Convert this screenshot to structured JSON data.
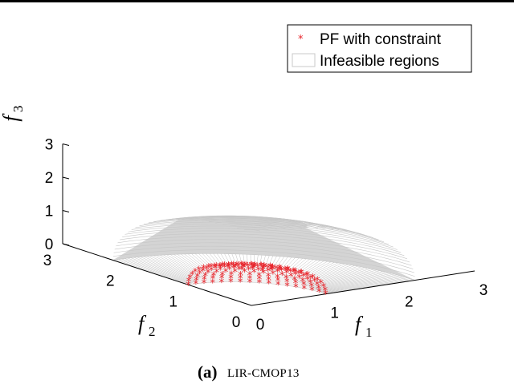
{
  "chart_data": {
    "type": "scatter",
    "projection": "3d",
    "caption": {
      "tag": "(a)",
      "name": "LIR-CMOP13"
    },
    "axes": {
      "x": {
        "label": "f",
        "subscript": "1",
        "ticks": [
          "0",
          "1",
          "2",
          "3"
        ],
        "range": [
          0,
          3
        ]
      },
      "y": {
        "label": "f",
        "subscript": "2",
        "ticks": [
          "0",
          "1",
          "2",
          "3"
        ],
        "range": [
          0,
          3
        ]
      },
      "z": {
        "label": "f",
        "subscript": "3",
        "ticks": [
          "0",
          "1",
          "2",
          "3"
        ],
        "range": [
          0,
          3
        ]
      }
    },
    "grid": false,
    "legend": {
      "placement": "top-right",
      "entries": [
        {
          "label": "PF with constraint",
          "marker": "*",
          "color": "#e8242b"
        },
        {
          "label": "Infeasible regions",
          "marker": "surface",
          "color": "#c8c8c8"
        }
      ]
    },
    "series": [
      {
        "name": "PF with constraint",
        "kind": "points",
        "shape": "sphere-octant",
        "radius": 1.0,
        "color": "#e8242b"
      },
      {
        "name": "Infeasible regions",
        "kind": "surface",
        "shape": "spherical-shell-octant",
        "inner_radius": 1.0,
        "outer_radius": 2.2,
        "color": "#c8c8c8"
      }
    ]
  }
}
